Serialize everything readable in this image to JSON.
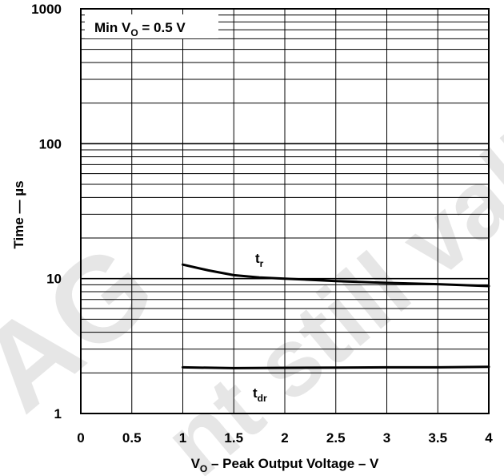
{
  "chart_data": {
    "type": "line",
    "title": "",
    "xlabel": {
      "pre": "V",
      "sub": "O",
      "post": " – Peak Output Voltage – V"
    },
    "ylabel": "Time — µs",
    "xlim": [
      0,
      4
    ],
    "ylim": [
      1,
      1000
    ],
    "yscale": "log",
    "grid": true,
    "x_ticks": [
      "0",
      "0.5",
      "1",
      "1.5",
      "2",
      "2.5",
      "3",
      "3.5",
      "4"
    ],
    "y_ticks": [
      "1",
      "10",
      "100",
      "1000"
    ],
    "condition": {
      "pre": "Min V",
      "sub": "O",
      "post": " = 0.5 V"
    },
    "series": [
      {
        "name": "tr",
        "label_main": "t",
        "label_sub": "r",
        "x": [
          1.0,
          1.25,
          1.5,
          1.75,
          2.0,
          2.5,
          3.0,
          3.5,
          4.0
        ],
        "y": [
          12.7,
          11.5,
          10.6,
          10.2,
          10.0,
          9.6,
          9.3,
          9.1,
          8.8
        ]
      },
      {
        "name": "tdr",
        "label_main": "t",
        "label_sub": "dr",
        "x": [
          1.0,
          1.5,
          2.0,
          2.5,
          3.0,
          3.5,
          4.0
        ],
        "y": [
          2.2,
          2.17,
          2.18,
          2.19,
          2.2,
          2.2,
          2.22
        ]
      }
    ],
    "watermark": "AG ... nt still vali"
  }
}
